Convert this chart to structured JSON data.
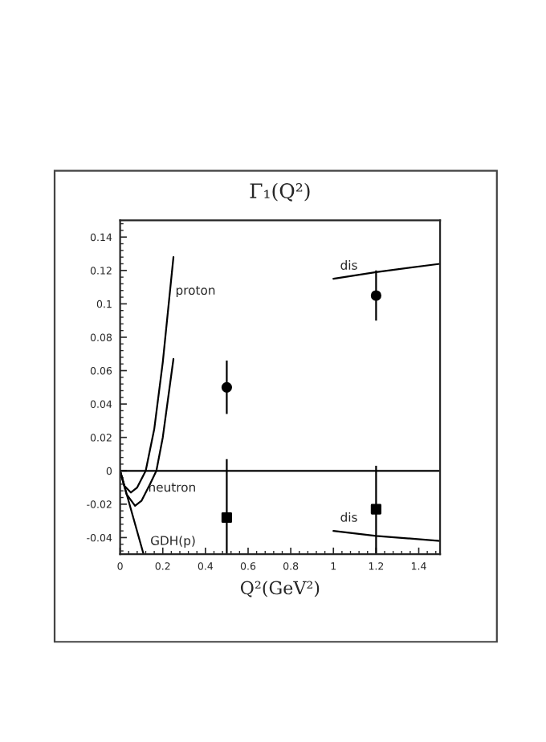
{
  "chart_data": {
    "type": "line",
    "title": "Γ₁(Q²)",
    "xlabel": "Q²(GeV²)",
    "xlim": [
      0,
      1.5
    ],
    "ylim": [
      -0.05,
      0.15
    ],
    "xticks": [
      0,
      0.2,
      0.4,
      0.6,
      0.8,
      1,
      1.2,
      1.4
    ],
    "yticks": [
      -0.04,
      -0.02,
      0,
      0.02,
      0.04,
      0.06,
      0.08,
      0.1,
      0.12,
      0.14
    ],
    "grid": false,
    "legend": false,
    "ref_lines": [
      {
        "axis": "y",
        "value": 0,
        "color": "#000000"
      }
    ],
    "series": [
      {
        "color": "#000000",
        "x": [
          0,
          0.02,
          0.05,
          0.08,
          0.12,
          0.16,
          0.2,
          0.25
        ],
        "values": [
          0,
          -0.009,
          -0.013,
          -0.01,
          0,
          0.025,
          0.065,
          0.128
        ]
      },
      {
        "color": "#000000",
        "x": [
          0,
          0.03,
          0.07,
          0.1,
          0.14,
          0.17,
          0.2,
          0.25
        ],
        "values": [
          0,
          -0.014,
          -0.021,
          -0.018,
          -0.008,
          0,
          0.02,
          0.067
        ]
      },
      {
        "color": "#000000",
        "x": [
          0,
          0.11
        ],
        "values": [
          0,
          -0.05
        ]
      },
      {
        "color": "#000000",
        "x": [
          1,
          1.2,
          1.5
        ],
        "values": [
          0.115,
          0.119,
          0.124
        ]
      },
      {
        "color": "#000000",
        "x": [
          1,
          1.2,
          1.5
        ],
        "values": [
          -0.036,
          -0.039,
          -0.042
        ]
      },
      {
        "type": "scatter",
        "marker": "circle",
        "color": "#000000",
        "x": [
          0.5,
          1.2
        ],
        "values": [
          0.05,
          0.105
        ],
        "errors": [
          0.016,
          0.015
        ]
      },
      {
        "type": "scatter",
        "marker": "square",
        "color": "#000000",
        "x": [
          0.5,
          1.2
        ],
        "values": [
          -0.028,
          -0.023
        ],
        "errors": [
          [
            -0.05,
            0.007
          ],
          [
            -0.05,
            0.003
          ]
        ]
      }
    ],
    "annotations": [
      {
        "text": "proton",
        "x": 0.228,
        "y": 0.1
      },
      {
        "text": "neutron",
        "x": 0.1,
        "y": -0.018
      },
      {
        "text": "GDH(p)",
        "x": 0.11,
        "y": -0.05
      },
      {
        "text": "dis",
        "x": 1.0,
        "y": 0.115
      },
      {
        "text": "dis",
        "x": 1.0,
        "y": -0.036
      }
    ]
  }
}
